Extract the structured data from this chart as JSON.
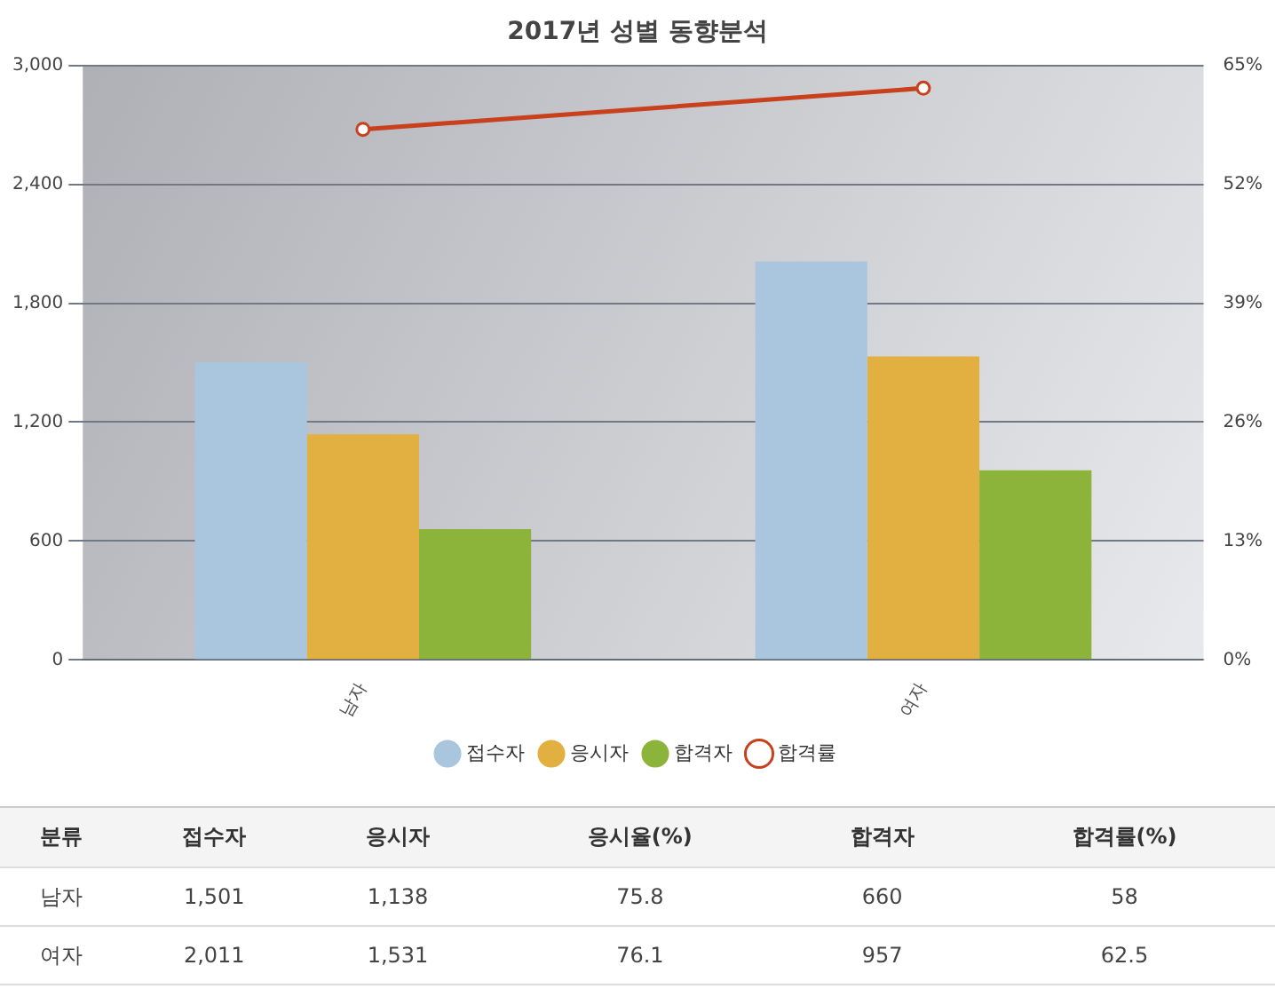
{
  "chart_data": [
    {
      "type": "bar",
      "title": "2017년 성별 동향분석",
      "categories": [
        "남자",
        "여자"
      ],
      "series": [
        {
          "name": "접수자",
          "color": "#a9c6de",
          "values": [
            1501,
            2011
          ]
        },
        {
          "name": "응시자",
          "color": "#e2b040",
          "values": [
            1138,
            1531
          ]
        },
        {
          "name": "합격자",
          "color": "#8cb43a",
          "values": [
            660,
            957
          ]
        },
        {
          "name": "합격률",
          "type": "line",
          "axis": "y2",
          "color": "#c8401c",
          "values": [
            58,
            62.5
          ]
        }
      ],
      "ylim": [
        0,
        3000
      ],
      "yticks": [
        0,
        {
          "value": 600,
          "label": "600"
        },
        {
          "value": 1200,
          "label": "1,200"
        },
        {
          "value": 1800,
          "label": "1,800"
        },
        {
          "value": 2400,
          "label": "2,400"
        },
        {
          "value": 3000,
          "label": "3,000"
        }
      ],
      "y2lim": [
        0,
        65
      ],
      "y2ticks": [
        {
          "value": 0,
          "label": "0%"
        },
        {
          "value": 13,
          "label": "13%"
        },
        {
          "value": 26,
          "label": "26%"
        },
        {
          "value": 39,
          "label": "39%"
        },
        {
          "value": 52,
          "label": "52%"
        },
        {
          "value": 65,
          "label": "65%"
        }
      ],
      "grid": "y",
      "legend": "bottom",
      "marker": "circle"
    },
    {
      "type": "other",
      "xlabel": "분류",
      "data_labels": true,
      "categories": [
        "남자",
        "여자"
      ],
      "series": [
        {
          "name": "접수자",
          "values": [
            1501,
            2011
          ],
          "value_labels": [
            "1,501",
            "2,011"
          ]
        },
        {
          "name": "응시자",
          "values": [
            1138,
            1531
          ],
          "value_labels": [
            "1,138",
            "1,531"
          ]
        },
        {
          "name": "응시율(%)",
          "values": [
            75.8,
            76.1
          ]
        },
        {
          "name": "합격자",
          "values": [
            660,
            957
          ]
        },
        {
          "name": "합격률(%)",
          "values": [
            58,
            62.5
          ]
        }
      ]
    }
  ]
}
